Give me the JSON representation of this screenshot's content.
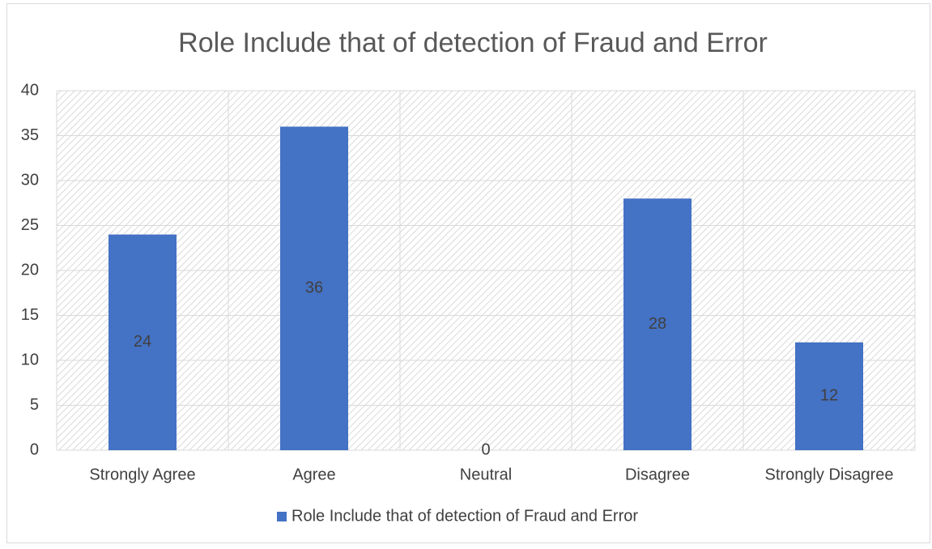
{
  "chart_data": {
    "type": "bar",
    "title": "Role Include that of detection of Fraud and Error",
    "categories": [
      "Strongly Agree",
      "Agree",
      "Neutral",
      "Disagree",
      "Strongly Disagree"
    ],
    "series": [
      {
        "name": "Role Include that of detection of Fraud and Error",
        "color": "#4472c4",
        "values": [
          24,
          36,
          0,
          28,
          12
        ]
      }
    ],
    "ylim": [
      0,
      40
    ],
    "yticks": [
      0,
      5,
      10,
      15,
      20,
      25,
      30,
      35,
      40
    ],
    "grid": true,
    "legend": "bottom",
    "data_labels": true
  }
}
